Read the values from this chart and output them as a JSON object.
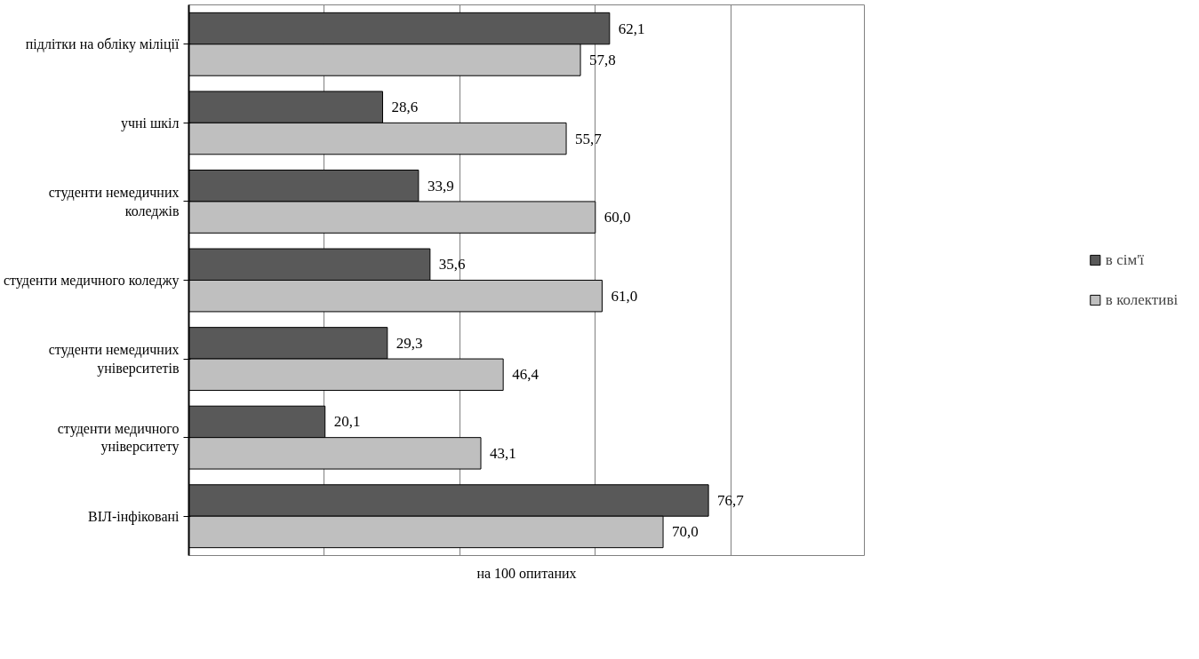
{
  "chart_data": {
    "type": "bar",
    "orientation": "horizontal",
    "xlabel": "на 100 опитаних",
    "categories": [
      "підлітки на обліку міліції",
      "учні шкіл",
      "студенти немедичних\nколеджів",
      "студенти медичного коледжу",
      "студенти немедичних\nуніверситетів",
      "студенти медичного\nуніверситету",
      "ВІЛ-інфіковані"
    ],
    "series": [
      {
        "name": "в сім'ї",
        "color": "#595959",
        "values": [
          62.1,
          28.6,
          33.9,
          35.6,
          29.3,
          20.1,
          76.7
        ],
        "value_labels": [
          "62,1",
          "28,6",
          "33,9",
          "35,6",
          "29,3",
          "20,1",
          "76,7"
        ]
      },
      {
        "name": "в колективі",
        "color": "#bfbfbf",
        "values": [
          57.8,
          55.7,
          60.0,
          61.0,
          46.4,
          43.1,
          70.0
        ],
        "value_labels": [
          "57,8",
          "55,7",
          "60,0",
          "61,0",
          "46,4",
          "43,1",
          "70,0"
        ]
      }
    ],
    "tick_labels": "y",
    "grid": "x",
    "legend": "right"
  }
}
